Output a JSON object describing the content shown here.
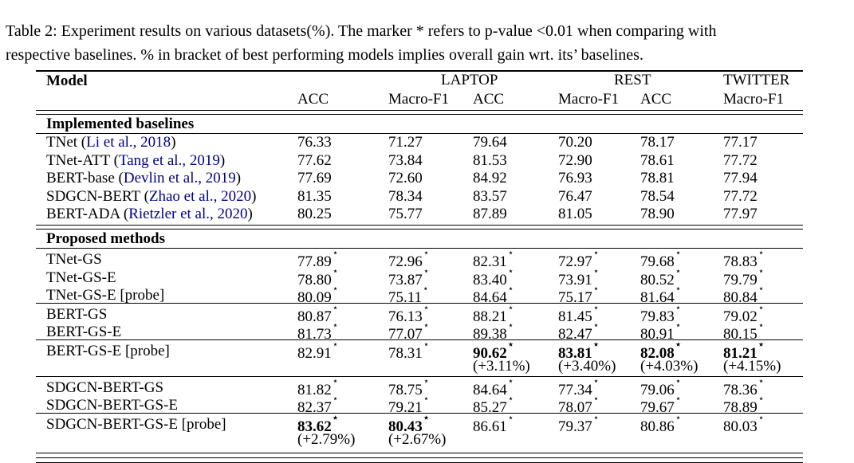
{
  "caption": {
    "line1": "Table 2: Experiment results on various datasets(%). The marker * refers to p-value <0.01 when comparing with",
    "line2": "respective baselines. % in bracket of best performing models implies overall gain wrt. its’ baselines."
  },
  "colors": {
    "citation": "#00008B",
    "text": "#000000",
    "background": "#ffffff"
  },
  "star_symbol": "⋆",
  "table": {
    "model_header": "Model",
    "groups": [
      {
        "label": "LAPTOP"
      },
      {
        "label": "REST"
      },
      {
        "label": "TWITTER"
      }
    ],
    "subheaders": [
      "ACC",
      "Macro-F1",
      "ACC",
      "Macro-F1",
      "ACC",
      "Macro-F1"
    ],
    "sections": [
      {
        "title": "Implemented baselines",
        "rows": [
          {
            "model": "TNet",
            "citation": "Li et al., 2018",
            "star": false,
            "values": [
              "76.33",
              "71.27",
              "79.64",
              "70.20",
              "78.17",
              "77.17"
            ]
          },
          {
            "model": "TNet-ATT",
            "citation": "Tang et al., 2019",
            "star": false,
            "values": [
              "77.62",
              "73.84",
              "81.53",
              "72.90",
              "78.61",
              "77.72"
            ]
          },
          {
            "model": "BERT-base",
            "citation": "Devlin et al., 2019",
            "star": false,
            "values": [
              "77.69",
              "72.60",
              "84.92",
              "76.93",
              "78.81",
              "77.94"
            ]
          },
          {
            "model": "SDGCN-BERT",
            "citation": "Zhao et al., 2020",
            "star": false,
            "values": [
              "81.35",
              "78.34",
              "83.57",
              "76.47",
              "78.54",
              "77.72"
            ]
          },
          {
            "model": "BERT-ADA",
            "citation": "Rietzler et al., 2020",
            "star": false,
            "values": [
              "80.25",
              "75.77",
              "87.89",
              "81.05",
              "78.90",
              "77.97"
            ]
          }
        ]
      },
      {
        "title": "Proposed methods",
        "rows": [
          {
            "model": "TNet-GS",
            "star": true,
            "values": [
              "77.89",
              "72.96",
              "82.31",
              "72.97",
              "79.68",
              "78.83"
            ]
          },
          {
            "model": "TNet-GS-E",
            "star": true,
            "values": [
              "78.80",
              "73.87",
              "83.40",
              "73.91",
              "80.52",
              "79.79"
            ]
          },
          {
            "model": "TNet-GS-E [probe]",
            "star": true,
            "values": [
              "80.09",
              "75.11",
              "84.64",
              "75.17",
              "81.64",
              "80.84"
            ],
            "hline_after": true
          },
          {
            "model": "BERT-GS",
            "star": true,
            "values": [
              "80.87",
              "76.13",
              "88.21",
              "81.45",
              "79.83",
              "79.02"
            ]
          },
          {
            "model": "BERT-GS-E",
            "star": true,
            "values": [
              "81.73",
              "77.07",
              "89.38",
              "82.47",
              "80.91",
              "80.15"
            ],
            "hline_after": true
          },
          {
            "model": "BERT-GS-E [probe]",
            "star": true,
            "values": [
              "82.91",
              "78.31",
              "90.62",
              "83.81",
              "82.08",
              "81.21"
            ],
            "bold": [
              2,
              3,
              4,
              5
            ],
            "gains": [
              "",
              "",
              "(+3.11%)",
              "(+3.40%)",
              "(+4.03%)",
              "(+4.15%)"
            ],
            "hline_after": true
          },
          {
            "model": "SDGCN-BERT-GS",
            "star": true,
            "values": [
              "81.82",
              "78.75",
              "84.64",
              "77.34",
              "79.06",
              "78.36"
            ]
          },
          {
            "model": "SDGCN-BERT-GS-E",
            "star": true,
            "values": [
              "82.37",
              "79.21",
              "85.27",
              "78.07",
              "79.67",
              "78.89"
            ],
            "hline_after": true
          },
          {
            "model": "SDGCN-BERT-GS-E [probe]",
            "star": true,
            "values": [
              "83.62",
              "80.43",
              "86.61",
              "79.37",
              "80.86",
              "80.03"
            ],
            "bold": [
              0,
              1
            ],
            "gains": [
              "(+2.79%)",
              "(+2.67%)",
              "",
              "",
              "",
              ""
            ]
          }
        ]
      }
    ]
  }
}
